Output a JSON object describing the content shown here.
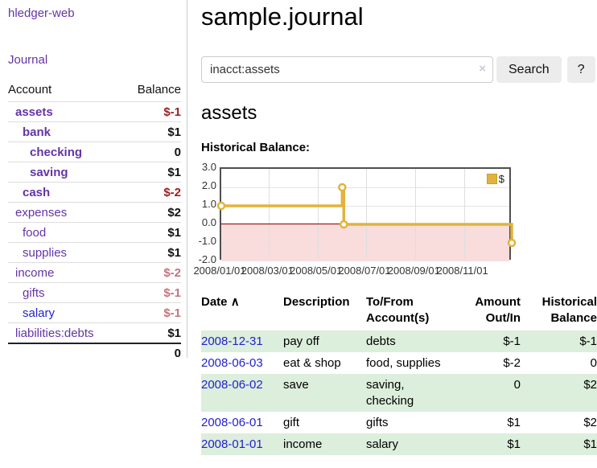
{
  "app": {
    "brand": "hledger-web",
    "nav_journal": "Journal"
  },
  "sidebar": {
    "header": {
      "account": "Account",
      "balance": "Balance"
    },
    "accounts": [
      {
        "name": "assets",
        "balance": "$-1"
      },
      {
        "name": "bank",
        "balance": "$1"
      },
      {
        "name": "checking",
        "balance": "0"
      },
      {
        "name": "saving",
        "balance": "$1"
      },
      {
        "name": "cash",
        "balance": "$-2"
      },
      {
        "name": "expenses",
        "balance": "$2"
      },
      {
        "name": "food",
        "balance": "$1"
      },
      {
        "name": "supplies",
        "balance": "$1"
      },
      {
        "name": "income",
        "balance": "$-2"
      },
      {
        "name": "gifts",
        "balance": "$-1"
      },
      {
        "name": "salary",
        "balance": "$-1"
      },
      {
        "name": "liabilities:debts",
        "balance": "$1"
      }
    ],
    "total": "0"
  },
  "main": {
    "title": "sample.journal",
    "search": {
      "value": "inacct:assets",
      "clear_icon": "×",
      "button": "Search",
      "help": "?"
    },
    "account_heading": "assets",
    "section_label": "Historical Balance:"
  },
  "chart_data": {
    "type": "line",
    "title": "Historical Balance",
    "series": [
      {
        "name": "$",
        "color": "#e2b33c",
        "step": true,
        "points": [
          {
            "date": "2008-01-01",
            "value": 1
          },
          {
            "date": "2008-06-01",
            "value": 2
          },
          {
            "date": "2008-06-03",
            "value": 0
          },
          {
            "date": "2008-12-31",
            "value": -1
          }
        ]
      }
    ],
    "ylim": [
      -2,
      3
    ],
    "yticks": [
      3,
      2,
      1,
      0,
      -1,
      -2
    ],
    "ytick_labels": [
      "3.0",
      "2.0",
      "1.0",
      "0.0",
      "-1.0",
      "-2.0"
    ],
    "xtick_labels": [
      "2008/01/01",
      "2008/03/01",
      "2008/05/01",
      "2008/07/01",
      "2008/09/01",
      "2008/11/01"
    ],
    "x_domain": [
      "2008-01-01",
      "2009-01-01"
    ],
    "legend": {
      "label": "$",
      "position": "top-right"
    },
    "negative_region_color": "#f9dcdc",
    "zero_line_color": "#8b0000",
    "grid": true
  },
  "table": {
    "sort_icon": "∧",
    "headers": {
      "date": "Date",
      "description": "Description",
      "accounts": "To/From Account(s)",
      "amount": "Amount Out/In",
      "balance": "Historical Balance"
    },
    "rows": [
      {
        "date": "2008-12-31",
        "description": "pay off",
        "accounts": "debts",
        "amount": "$-1",
        "balance": "$-1"
      },
      {
        "date": "2008-06-03",
        "description": "eat & shop",
        "accounts": "food, supplies",
        "amount": "$-2",
        "balance": "0"
      },
      {
        "date": "2008-06-02",
        "description": "save",
        "accounts": "saving, checking",
        "amount": "0",
        "balance": "$2"
      },
      {
        "date": "2008-06-01",
        "description": "gift",
        "accounts": "gifts",
        "amount": "$1",
        "balance": "$2"
      },
      {
        "date": "2008-01-01",
        "description": "income",
        "accounts": "salary",
        "amount": "$1",
        "balance": "$1"
      }
    ]
  }
}
